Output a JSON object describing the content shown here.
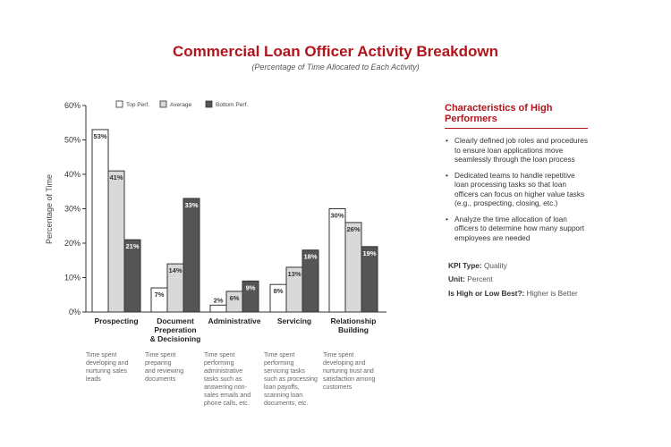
{
  "chart_data": {
    "type": "bar",
    "title": "Commercial Loan Officer Activity Breakdown",
    "subtitle": "(Percentage of Time Allocated to Each Activity)",
    "ylabel": "Percentage of Time",
    "xlabel": "",
    "ylim": [
      0,
      60
    ],
    "yticks": [
      "0%",
      "10%",
      "20%",
      "30%",
      "40%",
      "50%",
      "60%"
    ],
    "categories": [
      "Prospecting",
      "Document Preperation & Decisioning",
      "Administrative",
      "Servicing",
      "Relationship Building"
    ],
    "category_lines": [
      [
        "Prospecting"
      ],
      [
        "Document",
        "Preperation",
        "& Decisioning"
      ],
      [
        "Administrative"
      ],
      [
        "Servicing"
      ],
      [
        "Relationship",
        "Building"
      ]
    ],
    "series": [
      {
        "name": "Top Perf.",
        "values": [
          53,
          7,
          2,
          8,
          30
        ],
        "labels": [
          "53%",
          "7%",
          "2%",
          "8%",
          "30%"
        ],
        "color": "#ffffff"
      },
      {
        "name": "Average",
        "values": [
          41,
          14,
          6,
          13,
          26
        ],
        "labels": [
          "41%",
          "14%",
          "6%",
          "13%",
          "26%"
        ],
        "color": "#d9d9d9"
      },
      {
        "name": "Bottom Perf.",
        "values": [
          21,
          33,
          9,
          18,
          19
        ],
        "labels": [
          "21%",
          "33%",
          "9%",
          "18%",
          "19%"
        ],
        "color": "#555555"
      }
    ],
    "legend_position": "top",
    "grid": false
  },
  "descriptions": [
    [
      "Time spent",
      "developing and",
      "nurturing sales",
      "leads"
    ],
    [
      "Time spent",
      "preparing",
      "and reviewing",
      "documents"
    ],
    [
      "Time spent",
      "performing",
      "administrative",
      "tasks such as",
      "answering non-",
      "sales emails and",
      "phone calls, etc."
    ],
    [
      "Time spent",
      "performing",
      "servicing tasks",
      "such as processing",
      "loan payoffs,",
      "scanning loan",
      "documents, etc."
    ],
    [
      "Time spent",
      "developing and",
      "nurturing trust and",
      "satisfaction among",
      "customers"
    ]
  ],
  "panel": {
    "title": "Characteristics of High Performers",
    "bullets": [
      "Clearly defined job roles and procedures to ensure loan applications move seamlessly through the loan process",
      "Dedicated teams to handle repetitive loan processing tasks so that loan officers can focus on higher value tasks (e.g., prospecting, closing, etc.)",
      "Analyze the time allocation of loan officers to determine how many support employees are needed"
    ]
  },
  "kpi": {
    "type_label": "KPI Type:",
    "type_value": "Quality",
    "unit_label": "Unit:",
    "unit_value": "Percent",
    "best_label": "Is High or Low Best?:",
    "best_value": "Higher is Better"
  },
  "colors": {
    "accent": "#b0151b",
    "bar_stroke": "#333333"
  }
}
